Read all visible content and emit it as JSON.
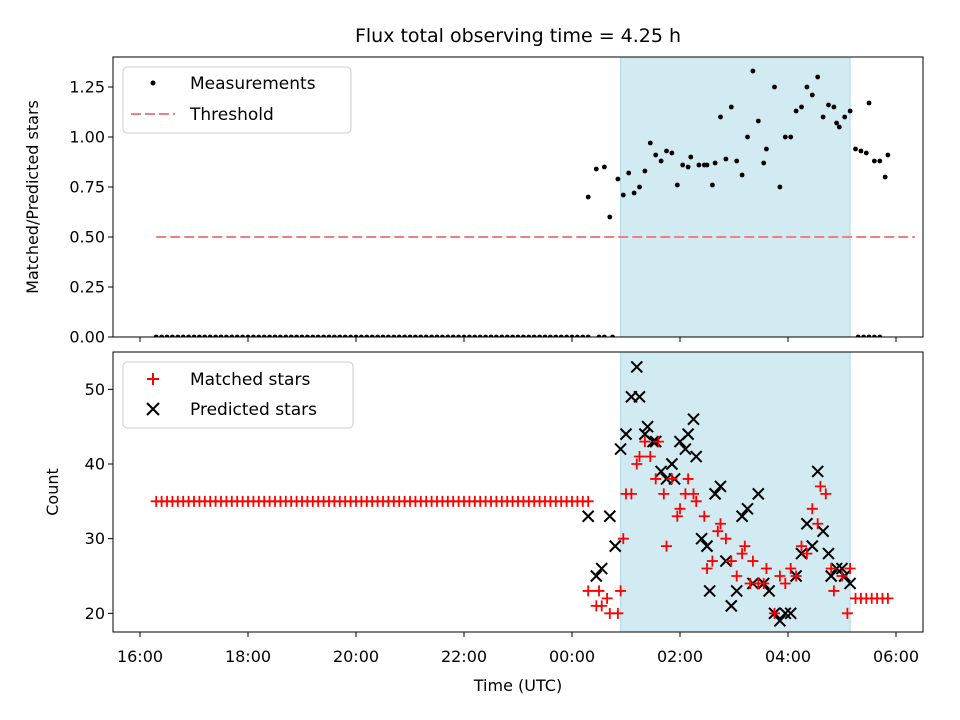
{
  "chart_data": {
    "title": "Flux total observing time = 4.25 h",
    "xlabel": "Time (UTC)",
    "xlim_hours": [
      15.5,
      30.5
    ],
    "x_ticks": [
      {
        "h": 16,
        "label": "16:00"
      },
      {
        "h": 18,
        "label": "18:00"
      },
      {
        "h": 20,
        "label": "20:00"
      },
      {
        "h": 22,
        "label": "22:00"
      },
      {
        "h": 24,
        "label": "00:00"
      },
      {
        "h": 26,
        "label": "02:00"
      },
      {
        "h": 28,
        "label": "04:00"
      },
      {
        "h": 30,
        "label": "06:00"
      }
    ],
    "shaded_span_hours": [
      24.9,
      29.15
    ],
    "shade_color": "#add8e6",
    "panels": [
      {
        "type": "scatter",
        "ylabel": "Matched/Predicted stars",
        "ylim": [
          0,
          1.4
        ],
        "y_ticks": [
          {
            "v": 0,
            "label": "0.00"
          },
          {
            "v": 0.25,
            "label": "0.25"
          },
          {
            "v": 0.5,
            "label": "0.50"
          },
          {
            "v": 0.75,
            "label": "0.75"
          },
          {
            "v": 1.0,
            "label": "1.00"
          },
          {
            "v": 1.25,
            "label": "1.25"
          }
        ],
        "legend": [
          "Measurements",
          "Threshold"
        ],
        "threshold": {
          "value": 0.5,
          "x_range": [
            16.3,
            30.35
          ],
          "color": "#f08080"
        },
        "measurement_color": "#000000",
        "zero_series": {
          "start": 16.3,
          "end": 24.2,
          "step": 0.1,
          "value": 0
        },
        "zero_points": [
          24.3,
          24.5,
          24.6,
          24.75,
          29.3,
          29.4,
          29.5,
          29.6,
          29.7
        ],
        "points": [
          [
            24.3,
            0.7
          ],
          [
            24.45,
            0.84
          ],
          [
            24.6,
            0.85
          ],
          [
            24.7,
            0.6
          ],
          [
            24.85,
            0.79
          ],
          [
            24.95,
            0.71
          ],
          [
            25.05,
            0.82
          ],
          [
            25.15,
            0.72
          ],
          [
            25.25,
            0.75
          ],
          [
            25.35,
            0.83
          ],
          [
            25.45,
            0.97
          ],
          [
            25.55,
            0.91
          ],
          [
            25.65,
            0.88
          ],
          [
            25.75,
            0.93
          ],
          [
            25.85,
            0.92
          ],
          [
            25.95,
            0.76
          ],
          [
            26.05,
            0.86
          ],
          [
            26.15,
            0.85
          ],
          [
            26.2,
            0.9
          ],
          [
            26.35,
            0.86
          ],
          [
            26.45,
            0.86
          ],
          [
            26.5,
            0.86
          ],
          [
            26.6,
            0.76
          ],
          [
            26.65,
            0.87
          ],
          [
            26.75,
            1.1
          ],
          [
            26.85,
            0.89
          ],
          [
            26.95,
            1.15
          ],
          [
            27.05,
            0.88
          ],
          [
            27.15,
            0.81
          ],
          [
            27.25,
            1.0
          ],
          [
            27.35,
            1.33
          ],
          [
            27.45,
            1.08
          ],
          [
            27.55,
            0.87
          ],
          [
            27.6,
            0.94
          ],
          [
            27.75,
            1.25
          ],
          [
            27.85,
            0.75
          ],
          [
            27.95,
            1.0
          ],
          [
            28.05,
            1.0
          ],
          [
            28.15,
            1.13
          ],
          [
            28.25,
            1.15
          ],
          [
            28.35,
            1.25
          ],
          [
            28.45,
            1.21
          ],
          [
            28.55,
            1.3
          ],
          [
            28.65,
            1.1
          ],
          [
            28.75,
            1.16
          ],
          [
            28.85,
            1.15
          ],
          [
            28.9,
            1.07
          ],
          [
            28.95,
            1.05
          ],
          [
            29.05,
            1.1
          ],
          [
            29.15,
            1.13
          ],
          [
            29.25,
            0.94
          ],
          [
            29.35,
            0.93
          ],
          [
            29.45,
            0.92
          ],
          [
            29.5,
            1.17
          ],
          [
            29.6,
            0.88
          ],
          [
            29.7,
            0.88
          ],
          [
            29.8,
            0.8
          ],
          [
            29.85,
            0.91
          ]
        ]
      },
      {
        "type": "scatter",
        "ylabel": "Count",
        "ylim": [
          17.5,
          55
        ],
        "y_ticks": [
          {
            "v": 20,
            "label": "20"
          },
          {
            "v": 30,
            "label": "30"
          },
          {
            "v": 40,
            "label": "40"
          },
          {
            "v": 50,
            "label": "50"
          }
        ],
        "legend": [
          "Matched stars",
          "Predicted stars"
        ],
        "matched_color": "#ff0000",
        "predicted_color": "#000000",
        "constant_series": {
          "start": 16.3,
          "end": 24.3,
          "step": 0.1,
          "value": 35
        },
        "matched": [
          [
            24.3,
            23
          ],
          [
            24.45,
            21
          ],
          [
            24.5,
            23
          ],
          [
            24.55,
            21
          ],
          [
            24.65,
            22
          ],
          [
            24.7,
            20
          ],
          [
            24.85,
            20
          ],
          [
            24.9,
            23
          ],
          [
            24.95,
            30
          ],
          [
            25.0,
            36
          ],
          [
            25.1,
            36
          ],
          [
            25.2,
            40
          ],
          [
            25.25,
            41
          ],
          [
            25.35,
            43
          ],
          [
            25.45,
            41
          ],
          [
            25.55,
            38
          ],
          [
            25.6,
            43
          ],
          [
            25.7,
            36
          ],
          [
            25.75,
            29
          ],
          [
            25.85,
            38
          ],
          [
            25.95,
            33
          ],
          [
            26.0,
            34
          ],
          [
            26.1,
            36
          ],
          [
            26.15,
            38
          ],
          [
            26.25,
            36
          ],
          [
            26.3,
            35
          ],
          [
            26.45,
            33
          ],
          [
            26.5,
            26
          ],
          [
            26.6,
            27
          ],
          [
            26.7,
            31
          ],
          [
            26.75,
            32
          ],
          [
            26.85,
            30
          ],
          [
            26.95,
            27
          ],
          [
            27.05,
            25
          ],
          [
            27.15,
            28
          ],
          [
            27.2,
            29
          ],
          [
            27.3,
            24
          ],
          [
            27.35,
            27
          ],
          [
            27.45,
            24
          ],
          [
            27.55,
            24
          ],
          [
            27.6,
            26
          ],
          [
            27.75,
            20
          ],
          [
            27.85,
            25
          ],
          [
            27.95,
            24
          ],
          [
            28.05,
            26
          ],
          [
            28.15,
            25
          ],
          [
            28.25,
            29
          ],
          [
            28.35,
            28
          ],
          [
            28.45,
            34
          ],
          [
            28.55,
            32
          ],
          [
            28.6,
            37
          ],
          [
            28.7,
            36
          ],
          [
            28.8,
            26
          ],
          [
            28.85,
            23
          ],
          [
            29.0,
            25
          ],
          [
            29.1,
            20
          ],
          [
            29.15,
            26
          ],
          [
            29.25,
            22
          ],
          [
            29.35,
            22
          ],
          [
            29.45,
            22
          ],
          [
            29.55,
            22
          ],
          [
            29.65,
            22
          ],
          [
            29.75,
            22
          ],
          [
            29.85,
            22
          ]
        ],
        "predicted": [
          [
            24.3,
            33
          ],
          [
            24.45,
            25
          ],
          [
            24.55,
            26
          ],
          [
            24.7,
            33
          ],
          [
            24.8,
            29
          ],
          [
            24.9,
            42
          ],
          [
            25.0,
            44
          ],
          [
            25.1,
            49
          ],
          [
            25.2,
            53
          ],
          [
            25.25,
            49
          ],
          [
            25.35,
            44
          ],
          [
            25.4,
            45
          ],
          [
            25.5,
            43
          ],
          [
            25.55,
            43
          ],
          [
            25.65,
            39
          ],
          [
            25.75,
            38
          ],
          [
            25.85,
            40
          ],
          [
            25.9,
            38
          ],
          [
            26.0,
            43
          ],
          [
            26.1,
            42
          ],
          [
            26.15,
            44
          ],
          [
            26.25,
            46
          ],
          [
            26.3,
            41
          ],
          [
            26.4,
            30
          ],
          [
            26.5,
            29
          ],
          [
            26.55,
            23
          ],
          [
            26.65,
            36
          ],
          [
            26.75,
            37
          ],
          [
            26.85,
            27
          ],
          [
            26.95,
            21
          ],
          [
            27.05,
            23
          ],
          [
            27.15,
            33
          ],
          [
            27.25,
            34
          ],
          [
            27.35,
            24
          ],
          [
            27.45,
            36
          ],
          [
            27.55,
            24
          ],
          [
            27.65,
            23
          ],
          [
            27.75,
            20
          ],
          [
            27.85,
            19
          ],
          [
            27.95,
            20
          ],
          [
            28.05,
            20
          ],
          [
            28.15,
            25
          ],
          [
            28.25,
            28
          ],
          [
            28.35,
            32
          ],
          [
            28.45,
            29
          ],
          [
            28.55,
            39
          ],
          [
            28.65,
            31
          ],
          [
            28.75,
            28
          ],
          [
            28.8,
            25
          ],
          [
            28.9,
            26
          ],
          [
            29.0,
            26
          ],
          [
            29.05,
            25
          ],
          [
            29.15,
            24
          ]
        ]
      }
    ]
  }
}
